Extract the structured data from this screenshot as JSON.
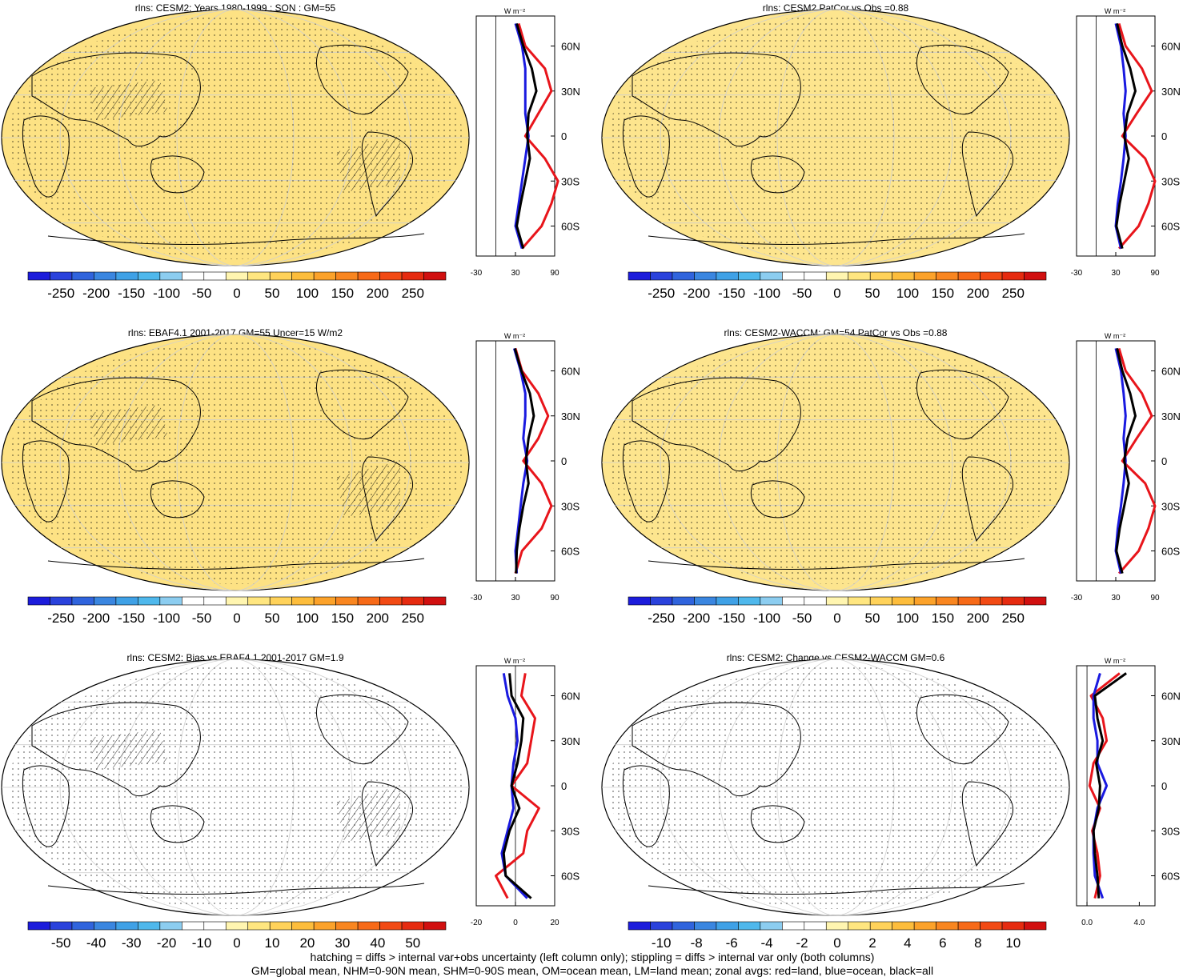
{
  "units": "W m⁻²",
  "lat_ticks": [
    "60N",
    "30N",
    "0",
    "30S",
    "60S"
  ],
  "colorbar_main": {
    "labels": [
      "-250",
      "-200",
      "-150",
      "-100",
      "-50",
      "0",
      "50",
      "100",
      "150",
      "200",
      "250"
    ],
    "colors": [
      "#1c1cdb",
      "#2a42dc",
      "#3064dd",
      "#3a86e0",
      "#3fa1e6",
      "#4fb8ec",
      "#8ccdf0",
      "#ffffff",
      "#ffffff",
      "#fff5b0",
      "#ffe680",
      "#ffd25a",
      "#fdbd3c",
      "#fca22a",
      "#f98620",
      "#f76a18",
      "#f24a14",
      "#e62b10",
      "#d11010"
    ]
  },
  "colorbar_bias": {
    "labels": [
      "-50",
      "-40",
      "-30",
      "-20",
      "-10",
      "0",
      "10",
      "20",
      "30",
      "40",
      "50"
    ]
  },
  "colorbar_change": {
    "labels": [
      "-10",
      "-8",
      "-6",
      "-4",
      "-2",
      "0",
      "2",
      "4",
      "6",
      "8",
      "10"
    ]
  },
  "panels": [
    {
      "title": "rlns: CESM2: Years 1980-1999 : SON : GM=55",
      "zonal_xticks": [
        "-30",
        "30",
        "90"
      ],
      "cbar": "main",
      "fill": "#fde284",
      "hatch": true
    },
    {
      "title": "rlns: CESM2 PatCor vs Obs =0.88",
      "zonal_xticks": [
        "-30",
        "30",
        "90"
      ],
      "cbar": "main",
      "fill": "#fde58e",
      "hatch": false
    },
    {
      "title": "rlns: EBAF4.1 2001-2017 GM=55 Uncer=15 W/m2",
      "zonal_xticks": [
        "-30",
        "30",
        "90"
      ],
      "cbar": "main",
      "fill": "#fde284",
      "hatch": true
    },
    {
      "title": "rlns: CESM2-WACCM: GM=54 PatCor vs Obs =0.88",
      "zonal_xticks": [
        "-30",
        "30",
        "90"
      ],
      "cbar": "main",
      "fill": "#fde58e",
      "hatch": false
    },
    {
      "title": "rlns: CESM2: Bias vs EBAF4.1 2001-2017  GM=1.9",
      "zonal_xticks": [
        "-20",
        "0",
        "20"
      ],
      "cbar": "bias",
      "fill": "#ffffff",
      "hatch": true
    },
    {
      "title": "rlns: CESM2: Change vs CESM2-WACCM GM=0.6",
      "zonal_xticks": [
        "0.0",
        "4.0"
      ],
      "cbar": "change",
      "fill": "#ffffff",
      "hatch": false
    }
  ],
  "footer": [
    "hatching = diffs > internal var+obs uncertainty (left column only); stippling = diffs > internal var only (both columns)",
    "GM=global mean, NHM=0-90N mean, SHM=0-90S mean, OM=ocean mean, LM=land mean; zonal avgs: red=land, blue=ocean, black=all"
  ],
  "chart_data": [
    {
      "type": "heatmap",
      "title": "rlns: CESM2: Years 1980-1999 : SON : GM=55",
      "colorbar": [
        -250,
        -200,
        -150,
        -100,
        -50,
        0,
        50,
        100,
        150,
        200,
        250
      ],
      "zonal_avg": {
        "series": [
          {
            "name": "red=land"
          },
          {
            "name": "blue=ocean"
          },
          {
            "name": "black=all"
          }
        ],
        "lat": [
          75,
          60,
          45,
          30,
          15,
          0,
          -15,
          -30,
          -45,
          -60,
          -75
        ],
        "land": [
          35,
          45,
          75,
          85,
          65,
          45,
          75,
          95,
          85,
          70,
          40
        ],
        "ocean": [
          30,
          40,
          45,
          45,
          45,
          50,
          45,
          40,
          35,
          30,
          40
        ],
        "all": [
          32,
          42,
          55,
          62,
          50,
          48,
          52,
          45,
          38,
          32,
          42
        ]
      }
    },
    {
      "type": "heatmap",
      "title": "rlns: CESM2 PatCor vs Obs =0.88",
      "colorbar": [
        -250,
        -200,
        -150,
        -100,
        -50,
        0,
        50,
        100,
        150,
        200,
        250
      ],
      "zonal_avg": {
        "lat": [
          75,
          60,
          45,
          30,
          15,
          0,
          -15,
          -30,
          -45,
          -60,
          -75
        ],
        "land": [
          35,
          45,
          70,
          85,
          62,
          40,
          75,
          90,
          80,
          65,
          35
        ],
        "ocean": [
          30,
          38,
          42,
          45,
          42,
          45,
          42,
          38,
          33,
          30,
          38
        ],
        "all": [
          32,
          40,
          52,
          60,
          48,
          43,
          50,
          43,
          36,
          31,
          40
        ]
      }
    },
    {
      "type": "heatmap",
      "title": "rlns: EBAF4.1 2001-2017 GM=55 Uncer=15 W/m2",
      "colorbar": [
        -250,
        -200,
        -150,
        -100,
        -50,
        0,
        50,
        100,
        150,
        200,
        250
      ],
      "zonal_avg": {
        "lat": [
          75,
          60,
          45,
          30,
          15,
          0,
          -15,
          -30,
          -45,
          -60,
          -75
        ],
        "land": [
          30,
          40,
          65,
          80,
          65,
          42,
          70,
          85,
          70,
          40,
          30
        ],
        "ocean": [
          28,
          38,
          45,
          45,
          42,
          48,
          42,
          38,
          34,
          30,
          32
        ],
        "all": [
          29,
          39,
          52,
          58,
          50,
          46,
          50,
          42,
          36,
          32,
          31
        ]
      }
    },
    {
      "type": "heatmap",
      "title": "rlns: CESM2-WACCM: GM=54 PatCor vs Obs =0.88",
      "colorbar": [
        -250,
        -200,
        -150,
        -100,
        -50,
        0,
        50,
        100,
        150,
        200,
        250
      ],
      "zonal_avg": {
        "lat": [
          75,
          60,
          45,
          30,
          15,
          0,
          -15,
          -30,
          -45,
          -60,
          -75
        ],
        "land": [
          35,
          45,
          70,
          85,
          62,
          40,
          75,
          90,
          80,
          65,
          35
        ],
        "ocean": [
          30,
          38,
          42,
          45,
          42,
          45,
          42,
          38,
          33,
          30,
          38
        ],
        "all": [
          32,
          40,
          52,
          60,
          48,
          43,
          50,
          43,
          36,
          31,
          40
        ]
      }
    },
    {
      "type": "heatmap",
      "title": "rlns: CESM2: Bias vs EBAF4.1 2001-2017  GM=1.9",
      "colorbar": [
        -50,
        -40,
        -30,
        -20,
        -10,
        0,
        10,
        20,
        30,
        40,
        50
      ],
      "zonal_avg": {
        "lat": [
          75,
          60,
          45,
          30,
          15,
          0,
          -15,
          -30,
          -45,
          -60,
          -75
        ],
        "land": [
          5,
          3,
          10,
          8,
          6,
          -2,
          12,
          6,
          4,
          -10,
          -4
        ],
        "ocean": [
          -6,
          -4,
          0,
          1,
          -1,
          -2,
          -1,
          -4,
          -7,
          -5,
          6
        ],
        "all": [
          -3,
          -2,
          4,
          3,
          1,
          -2,
          2,
          -3,
          -6,
          -5,
          8
        ]
      }
    },
    {
      "type": "heatmap",
      "title": "rlns: CESM2: Change vs CESM2-WACCM GM=0.6",
      "colorbar": [
        -10,
        -8,
        -6,
        -4,
        -2,
        0,
        2,
        4,
        6,
        8,
        10
      ],
      "zonal_avg": {
        "lat": [
          75,
          60,
          45,
          30,
          15,
          0,
          -15,
          -30,
          -45,
          -60,
          -75
        ],
        "land": [
          2.5,
          0.3,
          1.2,
          1.5,
          0.5,
          0.2,
          1.0,
          0.4,
          0.8,
          1.0,
          0.6
        ],
        "ocean": [
          1.0,
          0.5,
          0.5,
          0.8,
          0.8,
          1.5,
          0.8,
          0.5,
          0.5,
          0.6,
          1.2
        ],
        "all": [
          3.0,
          0.6,
          0.8,
          1.2,
          0.7,
          1.0,
          0.9,
          0.5,
          0.6,
          0.8,
          0.9
        ]
      }
    }
  ]
}
